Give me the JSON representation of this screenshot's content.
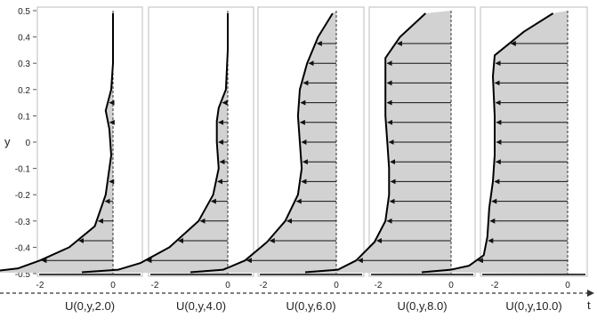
{
  "y_axis": {
    "label": "y",
    "ticks": [
      "0.5",
      "0.4",
      "0.3",
      "0.2",
      "0.1",
      "0",
      "-0.1",
      "-0.2",
      "-0.3",
      "-0.4",
      "-0.5"
    ]
  },
  "x_axis": {
    "label": "t"
  },
  "panels": [
    {
      "caption": "U(0,y,2.0)",
      "x_ticks": [
        "-2",
        "0"
      ],
      "profile": [
        [
          -4.0,
          -0.495
        ],
        [
          -3.2,
          -0.49
        ],
        [
          -2.6,
          -0.48
        ],
        [
          -2.0,
          -0.45
        ],
        [
          -1.2,
          -0.4
        ],
        [
          -0.5,
          -0.32
        ],
        [
          -0.2,
          -0.2
        ],
        [
          -0.05,
          -0.05
        ],
        [
          -0.1,
          0.05
        ],
        [
          -0.2,
          0.12
        ],
        [
          -0.05,
          0.2
        ],
        [
          0,
          0.3
        ],
        [
          0,
          0.49
        ]
      ]
    },
    {
      "caption": "U(0,y,4.0)",
      "x_ticks": [
        "-2",
        "0"
      ],
      "profile": [
        [
          -4.0,
          -0.495
        ],
        [
          -3.0,
          -0.485
        ],
        [
          -2.4,
          -0.46
        ],
        [
          -1.6,
          -0.4
        ],
        [
          -0.8,
          -0.3
        ],
        [
          -0.4,
          -0.2
        ],
        [
          -0.25,
          -0.1
        ],
        [
          -0.3,
          0
        ],
        [
          -0.3,
          0.08
        ],
        [
          -0.25,
          0.13
        ],
        [
          -0.05,
          0.2
        ],
        [
          0,
          0.35
        ],
        [
          0,
          0.49
        ]
      ]
    },
    {
      "caption": "U(0,y,6.0)",
      "x_ticks": [
        "-2",
        "0"
      ],
      "profile": [
        [
          -4.0,
          -0.495
        ],
        [
          -3.1,
          -0.485
        ],
        [
          -2.5,
          -0.45
        ],
        [
          -1.9,
          -0.38
        ],
        [
          -1.4,
          -0.3
        ],
        [
          -1.05,
          -0.2
        ],
        [
          -0.95,
          -0.1
        ],
        [
          -1.0,
          0
        ],
        [
          -1.05,
          0.1
        ],
        [
          -1.0,
          0.2
        ],
        [
          -0.8,
          0.3
        ],
        [
          -0.5,
          0.4
        ],
        [
          -0.1,
          0.49
        ]
      ]
    },
    {
      "caption": "U(0,y,8.0)",
      "x_ticks": [
        "-2",
        "0"
      ],
      "profile": [
        [
          -4.0,
          -0.495
        ],
        [
          -3.1,
          -0.485
        ],
        [
          -2.6,
          -0.45
        ],
        [
          -2.1,
          -0.38
        ],
        [
          -1.8,
          -0.3
        ],
        [
          -1.7,
          -0.2
        ],
        [
          -1.7,
          -0.1
        ],
        [
          -1.75,
          0
        ],
        [
          -1.8,
          0.1
        ],
        [
          -1.8,
          0.2
        ],
        [
          -1.8,
          0.32
        ],
        [
          -1.4,
          0.4
        ],
        [
          -0.7,
          0.49
        ]
      ]
    },
    {
      "caption": "U(0,y,10.0)",
      "x_ticks": [
        "-2",
        "0"
      ],
      "profile": [
        [
          -4.0,
          -0.495
        ],
        [
          -3.2,
          -0.485
        ],
        [
          -2.7,
          -0.47
        ],
        [
          -2.3,
          -0.43
        ],
        [
          -2.2,
          -0.36
        ],
        [
          -2.15,
          -0.25
        ],
        [
          -2.05,
          -0.15
        ],
        [
          -2.0,
          -0.05
        ],
        [
          -2.0,
          0.1
        ],
        [
          -2.05,
          0.25
        ],
        [
          -2.0,
          0.33
        ],
        [
          -1.2,
          0.42
        ],
        [
          -0.4,
          0.49
        ]
      ]
    }
  ]
}
